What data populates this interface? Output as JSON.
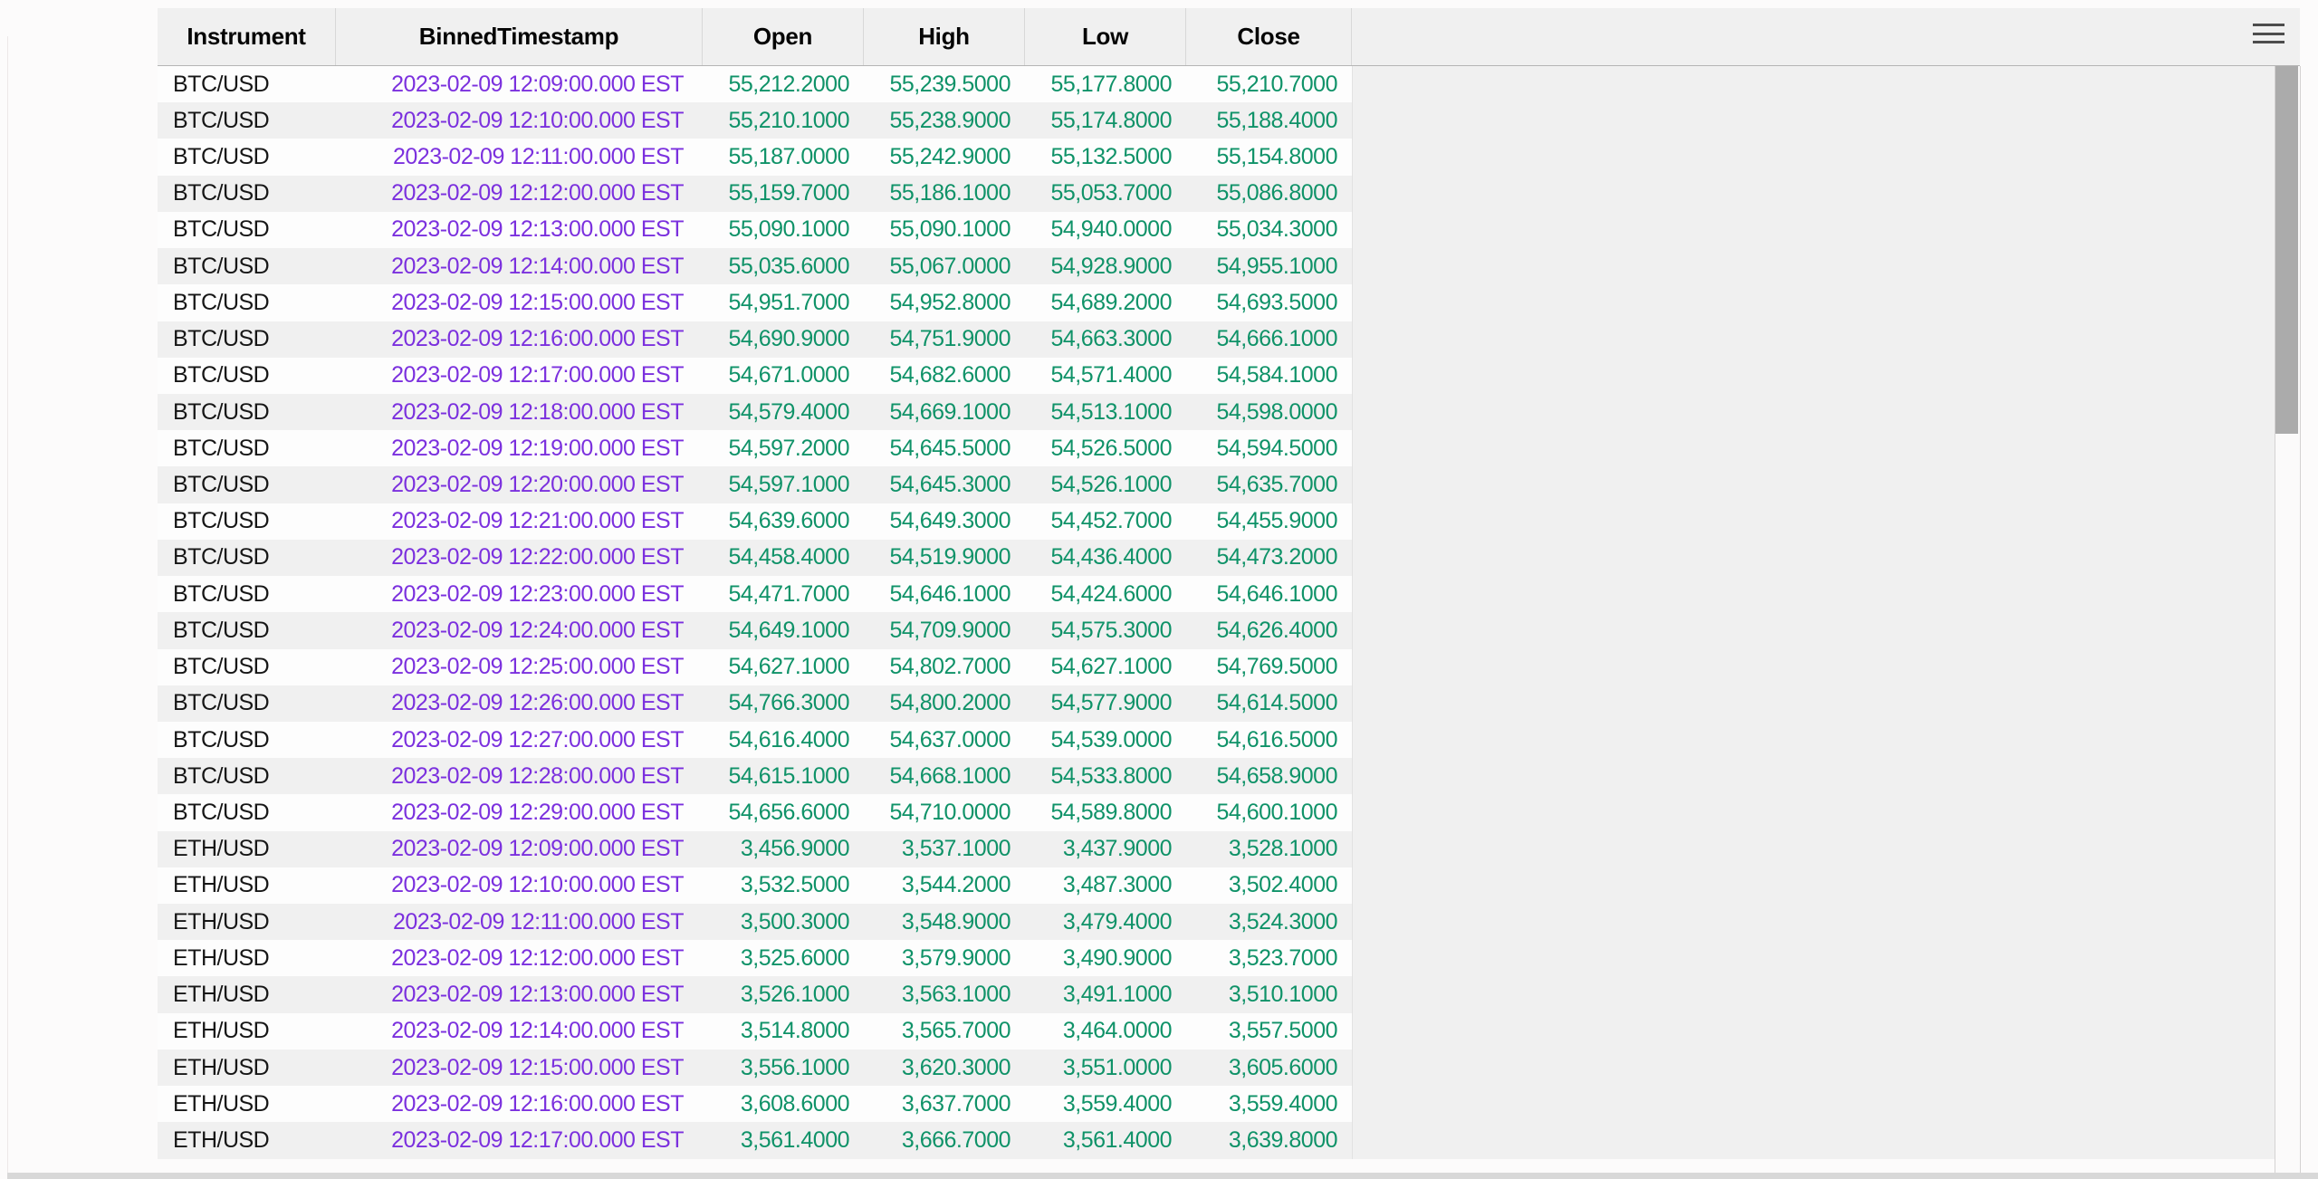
{
  "toolbar": {
    "menu_icon": "hamburger"
  },
  "colors": {
    "datetime_text": "#7b30de",
    "number_text": "#0f9268",
    "string_text": "#161616",
    "header_bg": "#f0f0f0",
    "row_stripe_bg": "#f0f0f0",
    "row_base_bg": "#fdfdfd",
    "scrollbar_thumb": "#ababab"
  },
  "table": {
    "columns": [
      {
        "label": "Instrument"
      },
      {
        "label": "BinnedTimestamp"
      },
      {
        "label": "Open"
      },
      {
        "label": "High"
      },
      {
        "label": "Low"
      },
      {
        "label": "Close"
      }
    ],
    "rows": [
      {
        "instrument": "BTC/USD",
        "timestamp": "2023-02-09 12:09:00.000 EST",
        "open": "55,212.2000",
        "high": "55,239.5000",
        "low": "55,177.8000",
        "close": "55,210.7000"
      },
      {
        "instrument": "BTC/USD",
        "timestamp": "2023-02-09 12:10:00.000 EST",
        "open": "55,210.1000",
        "high": "55,238.9000",
        "low": "55,174.8000",
        "close": "55,188.4000"
      },
      {
        "instrument": "BTC/USD",
        "timestamp": "2023-02-09 12:11:00.000 EST",
        "open": "55,187.0000",
        "high": "55,242.9000",
        "low": "55,132.5000",
        "close": "55,154.8000"
      },
      {
        "instrument": "BTC/USD",
        "timestamp": "2023-02-09 12:12:00.000 EST",
        "open": "55,159.7000",
        "high": "55,186.1000",
        "low": "55,053.7000",
        "close": "55,086.8000"
      },
      {
        "instrument": "BTC/USD",
        "timestamp": "2023-02-09 12:13:00.000 EST",
        "open": "55,090.1000",
        "high": "55,090.1000",
        "low": "54,940.0000",
        "close": "55,034.3000"
      },
      {
        "instrument": "BTC/USD",
        "timestamp": "2023-02-09 12:14:00.000 EST",
        "open": "55,035.6000",
        "high": "55,067.0000",
        "low": "54,928.9000",
        "close": "54,955.1000"
      },
      {
        "instrument": "BTC/USD",
        "timestamp": "2023-02-09 12:15:00.000 EST",
        "open": "54,951.7000",
        "high": "54,952.8000",
        "low": "54,689.2000",
        "close": "54,693.5000"
      },
      {
        "instrument": "BTC/USD",
        "timestamp": "2023-02-09 12:16:00.000 EST",
        "open": "54,690.9000",
        "high": "54,751.9000",
        "low": "54,663.3000",
        "close": "54,666.1000"
      },
      {
        "instrument": "BTC/USD",
        "timestamp": "2023-02-09 12:17:00.000 EST",
        "open": "54,671.0000",
        "high": "54,682.6000",
        "low": "54,571.4000",
        "close": "54,584.1000"
      },
      {
        "instrument": "BTC/USD",
        "timestamp": "2023-02-09 12:18:00.000 EST",
        "open": "54,579.4000",
        "high": "54,669.1000",
        "low": "54,513.1000",
        "close": "54,598.0000"
      },
      {
        "instrument": "BTC/USD",
        "timestamp": "2023-02-09 12:19:00.000 EST",
        "open": "54,597.2000",
        "high": "54,645.5000",
        "low": "54,526.5000",
        "close": "54,594.5000"
      },
      {
        "instrument": "BTC/USD",
        "timestamp": "2023-02-09 12:20:00.000 EST",
        "open": "54,597.1000",
        "high": "54,645.3000",
        "low": "54,526.1000",
        "close": "54,635.7000"
      },
      {
        "instrument": "BTC/USD",
        "timestamp": "2023-02-09 12:21:00.000 EST",
        "open": "54,639.6000",
        "high": "54,649.3000",
        "low": "54,452.7000",
        "close": "54,455.9000"
      },
      {
        "instrument": "BTC/USD",
        "timestamp": "2023-02-09 12:22:00.000 EST",
        "open": "54,458.4000",
        "high": "54,519.9000",
        "low": "54,436.4000",
        "close": "54,473.2000"
      },
      {
        "instrument": "BTC/USD",
        "timestamp": "2023-02-09 12:23:00.000 EST",
        "open": "54,471.7000",
        "high": "54,646.1000",
        "low": "54,424.6000",
        "close": "54,646.1000"
      },
      {
        "instrument": "BTC/USD",
        "timestamp": "2023-02-09 12:24:00.000 EST",
        "open": "54,649.1000",
        "high": "54,709.9000",
        "low": "54,575.3000",
        "close": "54,626.4000"
      },
      {
        "instrument": "BTC/USD",
        "timestamp": "2023-02-09 12:25:00.000 EST",
        "open": "54,627.1000",
        "high": "54,802.7000",
        "low": "54,627.1000",
        "close": "54,769.5000"
      },
      {
        "instrument": "BTC/USD",
        "timestamp": "2023-02-09 12:26:00.000 EST",
        "open": "54,766.3000",
        "high": "54,800.2000",
        "low": "54,577.9000",
        "close": "54,614.5000"
      },
      {
        "instrument": "BTC/USD",
        "timestamp": "2023-02-09 12:27:00.000 EST",
        "open": "54,616.4000",
        "high": "54,637.0000",
        "low": "54,539.0000",
        "close": "54,616.5000"
      },
      {
        "instrument": "BTC/USD",
        "timestamp": "2023-02-09 12:28:00.000 EST",
        "open": "54,615.1000",
        "high": "54,668.1000",
        "low": "54,533.8000",
        "close": "54,658.9000"
      },
      {
        "instrument": "BTC/USD",
        "timestamp": "2023-02-09 12:29:00.000 EST",
        "open": "54,656.6000",
        "high": "54,710.0000",
        "low": "54,589.8000",
        "close": "54,600.1000"
      },
      {
        "instrument": "ETH/USD",
        "timestamp": "2023-02-09 12:09:00.000 EST",
        "open": "3,456.9000",
        "high": "3,537.1000",
        "low": "3,437.9000",
        "close": "3,528.1000"
      },
      {
        "instrument": "ETH/USD",
        "timestamp": "2023-02-09 12:10:00.000 EST",
        "open": "3,532.5000",
        "high": "3,544.2000",
        "low": "3,487.3000",
        "close": "3,502.4000"
      },
      {
        "instrument": "ETH/USD",
        "timestamp": "2023-02-09 12:11:00.000 EST",
        "open": "3,500.3000",
        "high": "3,548.9000",
        "low": "3,479.4000",
        "close": "3,524.3000"
      },
      {
        "instrument": "ETH/USD",
        "timestamp": "2023-02-09 12:12:00.000 EST",
        "open": "3,525.6000",
        "high": "3,579.9000",
        "low": "3,490.9000",
        "close": "3,523.7000"
      },
      {
        "instrument": "ETH/USD",
        "timestamp": "2023-02-09 12:13:00.000 EST",
        "open": "3,526.1000",
        "high": "3,563.1000",
        "low": "3,491.1000",
        "close": "3,510.1000"
      },
      {
        "instrument": "ETH/USD",
        "timestamp": "2023-02-09 12:14:00.000 EST",
        "open": "3,514.8000",
        "high": "3,565.7000",
        "low": "3,464.0000",
        "close": "3,557.5000"
      },
      {
        "instrument": "ETH/USD",
        "timestamp": "2023-02-09 12:15:00.000 EST",
        "open": "3,556.1000",
        "high": "3,620.3000",
        "low": "3,551.0000",
        "close": "3,605.6000"
      },
      {
        "instrument": "ETH/USD",
        "timestamp": "2023-02-09 12:16:00.000 EST",
        "open": "3,608.6000",
        "high": "3,637.7000",
        "low": "3,559.4000",
        "close": "3,559.4000"
      },
      {
        "instrument": "ETH/USD",
        "timestamp": "2023-02-09 12:17:00.000 EST",
        "open": "3,561.4000",
        "high": "3,666.7000",
        "low": "3,561.4000",
        "close": "3,639.8000"
      }
    ]
  }
}
